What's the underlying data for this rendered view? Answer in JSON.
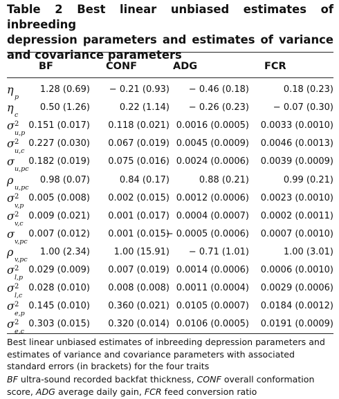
{
  "title_lines": [
    "Table 2 Best linear unbiased estimates of inbreeding",
    "depression parameters and estimates of variance",
    "and covariance parameters"
  ],
  "columns": [
    "BF",
    "CONF",
    "ADG",
    "FCR"
  ],
  "rows": [
    {
      "sym": "η",
      "sub": "p",
      "sup": "",
      "values": [
        "1.28 (0.69)",
        "− 0.21 (0.93)",
        "− 0.46 (0.18)",
        "0.18 (0.23)"
      ]
    },
    {
      "sym": "η",
      "sub": "c",
      "sup": "",
      "values": [
        "0.50 (1.26)",
        "0.22 (1.14)",
        "− 0.26 (0.23)",
        "− 0.07 (0.30)"
      ]
    },
    {
      "sym": "σ",
      "sub": "u,p",
      "sup": "2",
      "values": [
        "0.151 (0.017)",
        "0.118 (0.021)",
        "0.0016 (0.0005)",
        "0.0033 (0.0010)"
      ]
    },
    {
      "sym": "σ",
      "sub": "u,c",
      "sup": "2",
      "values": [
        "0.227 (0.030)",
        "0.067 (0.019)",
        "0.0045 (0.0009)",
        "0.0046 (0.0013)"
      ]
    },
    {
      "sym": "σ",
      "sub": "u,pc",
      "sup": "",
      "values": [
        "0.182 (0.019)",
        "0.075 (0.016)",
        "0.0024 (0.0006)",
        "0.0039 (0.0009)"
      ]
    },
    {
      "sym": "ρ",
      "sub": "u,pc",
      "sup": "",
      "values": [
        "0.98 (0.07)",
        "0.84 (0.17)",
        "0.88 (0.21)",
        "0.99 (0.21)"
      ]
    },
    {
      "sym": "σ",
      "sub": "v,p",
      "sup": "2",
      "values": [
        "0.005 (0.008)",
        "0.002 (0.015)",
        "0.0012 (0.0006)",
        "0.0023 (0.0010)"
      ]
    },
    {
      "sym": "σ",
      "sub": "v,c",
      "sup": "2",
      "values": [
        "0.009 (0.021)",
        "0.001 (0.017)",
        "0.0004 (0.0007)",
        "0.0002 (0.0011)"
      ]
    },
    {
      "sym": "σ",
      "sub": "v,pc",
      "sup": "",
      "values": [
        "0.007 (0.012)",
        "0.001 (0.015)",
        "− 0.0005 (0.0006)",
        "0.0007 (0.0010)"
      ]
    },
    {
      "sym": "ρ",
      "sub": "v,pc",
      "sup": "",
      "values": [
        "1.00 (2.34)",
        "1.00 (15.91)",
        "− 0.71 (1.01)",
        "1.00 (3.01)"
      ]
    },
    {
      "sym": "σ",
      "sub": "l,p",
      "sup": "2",
      "values": [
        "0.029 (0.009)",
        "0.007 (0.019)",
        "0.0014 (0.0006)",
        "0.0006 (0.0010)"
      ]
    },
    {
      "sym": "σ",
      "sub": "l,c",
      "sup": "2",
      "values": [
        "0.028 (0.010)",
        "0.008 (0.008)",
        "0.0011 (0.0004)",
        "0.0029 (0.0006)"
      ]
    },
    {
      "sym": "σ",
      "sub": "e,p",
      "sup": "2",
      "values": [
        "0.145 (0.010)",
        "0.360 (0.021)",
        "0.0105 (0.0007)",
        "0.0184 (0.0012)"
      ]
    },
    {
      "sym": "σ",
      "sub": "e,c",
      "sup": "2",
      "values": [
        "0.303 (0.015)",
        "0.320 (0.014)",
        "0.0106 (0.0005)",
        "0.0191 (0.0009)"
      ]
    }
  ],
  "footnote": "Best linear unbiased estimates of inbreeding depression parameters and estimates of variance and covariance parameters with associated standard errors (in brackets) for the four traits",
  "abbreviations": [
    {
      "abbr": "BF",
      "text": " ultra-sound recorded backfat thickness, "
    },
    {
      "abbr": "CONF",
      "text": " overall conformation score, "
    },
    {
      "abbr": "ADG",
      "text": " average daily gain, "
    },
    {
      "abbr": "FCR",
      "text": " feed conversion ratio"
    }
  ]
}
